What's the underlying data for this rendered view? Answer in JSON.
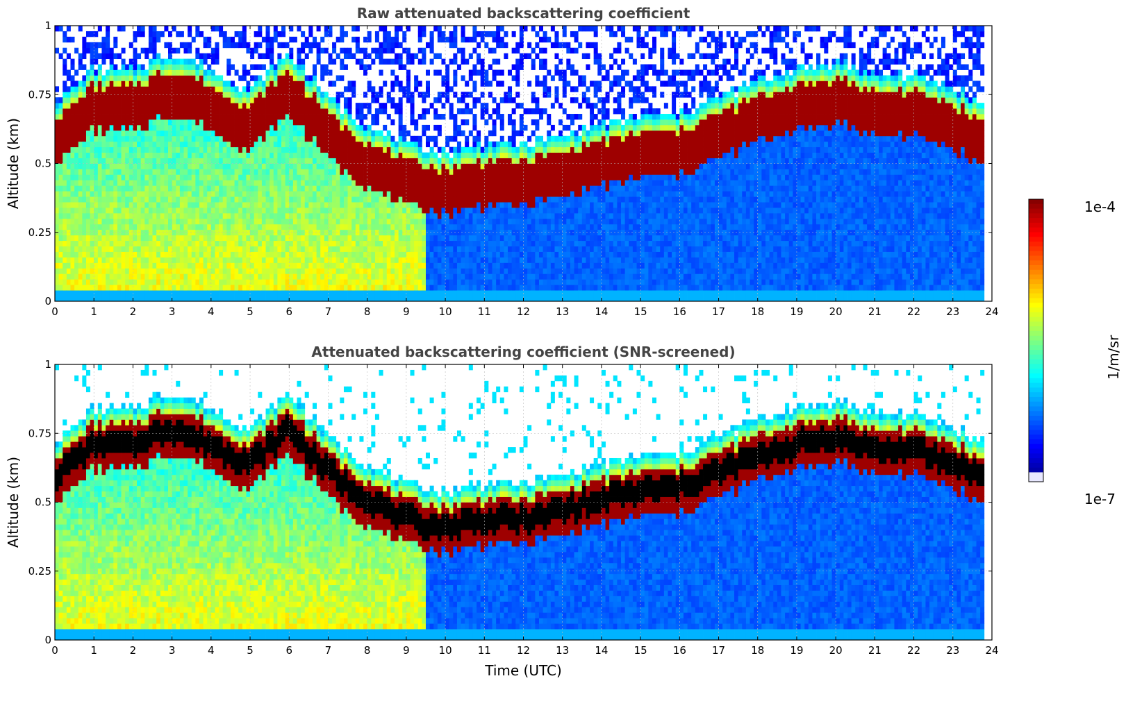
{
  "figure": {
    "colorbar": {
      "label": "1/m/sr",
      "tick_labels": [
        "1e-4",
        "1e-7"
      ],
      "range": [
        1e-07,
        0.0001
      ],
      "scale": "log",
      "colormap": "jet"
    }
  },
  "chart_data": [
    {
      "type": "heatmap",
      "title": "Raw attenuated backscattering coefficient",
      "xlabel": "",
      "ylabel": "Altitude (km)",
      "xlim": [
        0,
        24
      ],
      "ylim": [
        0,
        1
      ],
      "x_ticks": [
        "0",
        "1",
        "2",
        "3",
        "4",
        "5",
        "6",
        "7",
        "8",
        "9",
        "10",
        "11",
        "12",
        "13",
        "14",
        "15",
        "16",
        "17",
        "18",
        "19",
        "20",
        "21",
        "22",
        "23",
        "24"
      ],
      "y_ticks": [
        "0",
        "0.25",
        "0.5",
        "0.75",
        "1"
      ],
      "grid": true,
      "cloud_base_km": {
        "time_utc": [
          0,
          1,
          2,
          3,
          4,
          5,
          6,
          7,
          8,
          9,
          10,
          11,
          12,
          13,
          14,
          15,
          16,
          17,
          18,
          19,
          20,
          21,
          22,
          23,
          23.8
        ],
        "altitude_km": [
          0.6,
          0.72,
          0.72,
          0.78,
          0.72,
          0.65,
          0.78,
          0.62,
          0.52,
          0.45,
          0.42,
          0.45,
          0.45,
          0.48,
          0.52,
          0.55,
          0.56,
          0.62,
          0.68,
          0.72,
          0.75,
          0.7,
          0.7,
          0.65,
          0.6
        ]
      }
    },
    {
      "type": "heatmap",
      "title": "Attenuated backscattering coefficient (SNR-screened)",
      "xlabel": "Time (UTC)",
      "ylabel": "Altitude (km)",
      "xlim": [
        0,
        24
      ],
      "ylim": [
        0,
        1
      ],
      "x_ticks": [
        "0",
        "1",
        "2",
        "3",
        "4",
        "5",
        "6",
        "7",
        "8",
        "9",
        "10",
        "11",
        "12",
        "13",
        "14",
        "15",
        "16",
        "17",
        "18",
        "19",
        "20",
        "21",
        "22",
        "23",
        "24"
      ],
      "y_ticks": [
        "0",
        "0.25",
        "0.5",
        "0.75",
        "1"
      ],
      "grid": true,
      "cloud_base_km": {
        "time_utc": [
          0,
          1,
          2,
          3,
          4,
          5,
          6,
          7,
          8,
          9,
          10,
          11,
          12,
          13,
          14,
          15,
          16,
          17,
          18,
          19,
          20,
          21,
          22,
          23,
          23.8
        ],
        "altitude_km": [
          0.6,
          0.72,
          0.72,
          0.78,
          0.72,
          0.65,
          0.78,
          0.62,
          0.52,
          0.45,
          0.42,
          0.45,
          0.45,
          0.48,
          0.52,
          0.55,
          0.56,
          0.62,
          0.68,
          0.72,
          0.75,
          0.7,
          0.7,
          0.65,
          0.6
        ]
      }
    }
  ]
}
